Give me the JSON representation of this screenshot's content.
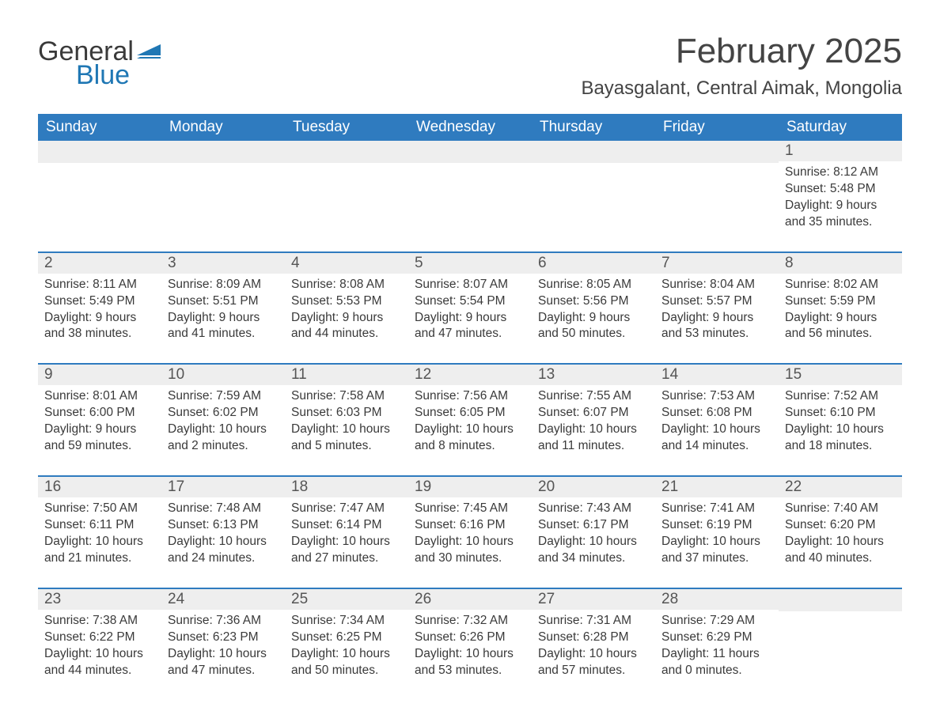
{
  "logo": {
    "word1": "General",
    "word2": "Blue"
  },
  "title": "February 2025",
  "location": "Bayasgalant, Central Aimak, Mongolia",
  "weekdays": [
    "Sunday",
    "Monday",
    "Tuesday",
    "Wednesday",
    "Thursday",
    "Friday",
    "Saturday"
  ],
  "colors": {
    "header_bg": "#2f7bbf",
    "header_text": "#ffffff",
    "daynum_bg": "#eeeeee",
    "border": "#2f7bbf",
    "logo_blue": "#1f77b4",
    "text": "#3a3a3a",
    "background": "#ffffff"
  },
  "weeks": [
    [
      {
        "n": "",
        "sunrise": "",
        "sunset": "",
        "daylight": ""
      },
      {
        "n": "",
        "sunrise": "",
        "sunset": "",
        "daylight": ""
      },
      {
        "n": "",
        "sunrise": "",
        "sunset": "",
        "daylight": ""
      },
      {
        "n": "",
        "sunrise": "",
        "sunset": "",
        "daylight": ""
      },
      {
        "n": "",
        "sunrise": "",
        "sunset": "",
        "daylight": ""
      },
      {
        "n": "",
        "sunrise": "",
        "sunset": "",
        "daylight": ""
      },
      {
        "n": "1",
        "sunrise": "Sunrise: 8:12 AM",
        "sunset": "Sunset: 5:48 PM",
        "daylight": "Daylight: 9 hours and 35 minutes."
      }
    ],
    [
      {
        "n": "2",
        "sunrise": "Sunrise: 8:11 AM",
        "sunset": "Sunset: 5:49 PM",
        "daylight": "Daylight: 9 hours and 38 minutes."
      },
      {
        "n": "3",
        "sunrise": "Sunrise: 8:09 AM",
        "sunset": "Sunset: 5:51 PM",
        "daylight": "Daylight: 9 hours and 41 minutes."
      },
      {
        "n": "4",
        "sunrise": "Sunrise: 8:08 AM",
        "sunset": "Sunset: 5:53 PM",
        "daylight": "Daylight: 9 hours and 44 minutes."
      },
      {
        "n": "5",
        "sunrise": "Sunrise: 8:07 AM",
        "sunset": "Sunset: 5:54 PM",
        "daylight": "Daylight: 9 hours and 47 minutes."
      },
      {
        "n": "6",
        "sunrise": "Sunrise: 8:05 AM",
        "sunset": "Sunset: 5:56 PM",
        "daylight": "Daylight: 9 hours and 50 minutes."
      },
      {
        "n": "7",
        "sunrise": "Sunrise: 8:04 AM",
        "sunset": "Sunset: 5:57 PM",
        "daylight": "Daylight: 9 hours and 53 minutes."
      },
      {
        "n": "8",
        "sunrise": "Sunrise: 8:02 AM",
        "sunset": "Sunset: 5:59 PM",
        "daylight": "Daylight: 9 hours and 56 minutes."
      }
    ],
    [
      {
        "n": "9",
        "sunrise": "Sunrise: 8:01 AM",
        "sunset": "Sunset: 6:00 PM",
        "daylight": "Daylight: 9 hours and 59 minutes."
      },
      {
        "n": "10",
        "sunrise": "Sunrise: 7:59 AM",
        "sunset": "Sunset: 6:02 PM",
        "daylight": "Daylight: 10 hours and 2 minutes."
      },
      {
        "n": "11",
        "sunrise": "Sunrise: 7:58 AM",
        "sunset": "Sunset: 6:03 PM",
        "daylight": "Daylight: 10 hours and 5 minutes."
      },
      {
        "n": "12",
        "sunrise": "Sunrise: 7:56 AM",
        "sunset": "Sunset: 6:05 PM",
        "daylight": "Daylight: 10 hours and 8 minutes."
      },
      {
        "n": "13",
        "sunrise": "Sunrise: 7:55 AM",
        "sunset": "Sunset: 6:07 PM",
        "daylight": "Daylight: 10 hours and 11 minutes."
      },
      {
        "n": "14",
        "sunrise": "Sunrise: 7:53 AM",
        "sunset": "Sunset: 6:08 PM",
        "daylight": "Daylight: 10 hours and 14 minutes."
      },
      {
        "n": "15",
        "sunrise": "Sunrise: 7:52 AM",
        "sunset": "Sunset: 6:10 PM",
        "daylight": "Daylight: 10 hours and 18 minutes."
      }
    ],
    [
      {
        "n": "16",
        "sunrise": "Sunrise: 7:50 AM",
        "sunset": "Sunset: 6:11 PM",
        "daylight": "Daylight: 10 hours and 21 minutes."
      },
      {
        "n": "17",
        "sunrise": "Sunrise: 7:48 AM",
        "sunset": "Sunset: 6:13 PM",
        "daylight": "Daylight: 10 hours and 24 minutes."
      },
      {
        "n": "18",
        "sunrise": "Sunrise: 7:47 AM",
        "sunset": "Sunset: 6:14 PM",
        "daylight": "Daylight: 10 hours and 27 minutes."
      },
      {
        "n": "19",
        "sunrise": "Sunrise: 7:45 AM",
        "sunset": "Sunset: 6:16 PM",
        "daylight": "Daylight: 10 hours and 30 minutes."
      },
      {
        "n": "20",
        "sunrise": "Sunrise: 7:43 AM",
        "sunset": "Sunset: 6:17 PM",
        "daylight": "Daylight: 10 hours and 34 minutes."
      },
      {
        "n": "21",
        "sunrise": "Sunrise: 7:41 AM",
        "sunset": "Sunset: 6:19 PM",
        "daylight": "Daylight: 10 hours and 37 minutes."
      },
      {
        "n": "22",
        "sunrise": "Sunrise: 7:40 AM",
        "sunset": "Sunset: 6:20 PM",
        "daylight": "Daylight: 10 hours and 40 minutes."
      }
    ],
    [
      {
        "n": "23",
        "sunrise": "Sunrise: 7:38 AM",
        "sunset": "Sunset: 6:22 PM",
        "daylight": "Daylight: 10 hours and 44 minutes."
      },
      {
        "n": "24",
        "sunrise": "Sunrise: 7:36 AM",
        "sunset": "Sunset: 6:23 PM",
        "daylight": "Daylight: 10 hours and 47 minutes."
      },
      {
        "n": "25",
        "sunrise": "Sunrise: 7:34 AM",
        "sunset": "Sunset: 6:25 PM",
        "daylight": "Daylight: 10 hours and 50 minutes."
      },
      {
        "n": "26",
        "sunrise": "Sunrise: 7:32 AM",
        "sunset": "Sunset: 6:26 PM",
        "daylight": "Daylight: 10 hours and 53 minutes."
      },
      {
        "n": "27",
        "sunrise": "Sunrise: 7:31 AM",
        "sunset": "Sunset: 6:28 PM",
        "daylight": "Daylight: 10 hours and 57 minutes."
      },
      {
        "n": "28",
        "sunrise": "Sunrise: 7:29 AM",
        "sunset": "Sunset: 6:29 PM",
        "daylight": "Daylight: 11 hours and 0 minutes."
      },
      {
        "n": "",
        "sunrise": "",
        "sunset": "",
        "daylight": ""
      }
    ]
  ]
}
